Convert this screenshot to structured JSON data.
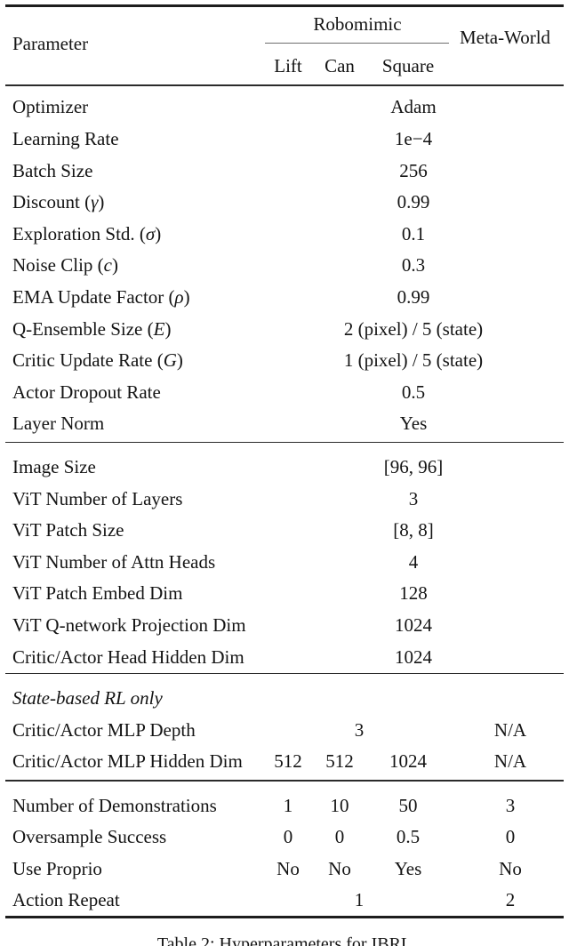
{
  "caption": "Table 2: Hyperparameters for IBRL",
  "header": {
    "parameter": "Parameter",
    "group": "Robomimic",
    "meta": "Meta-World",
    "subcols": [
      "Lift",
      "Can",
      "Square"
    ]
  },
  "sections": [
    {
      "rows": [
        {
          "label": "Optimizer",
          "type": "all",
          "value": "Adam"
        },
        {
          "label": "Learning Rate",
          "type": "all",
          "value": "1e−4"
        },
        {
          "label": "Batch Size",
          "type": "all",
          "value": "256"
        },
        {
          "label": "Discount (γ)",
          "type": "all",
          "value": "0.99"
        },
        {
          "label": "Exploration Std. (σ)",
          "type": "all",
          "value": "0.1"
        },
        {
          "label": "Noise Clip (c)",
          "type": "all",
          "value": "0.3"
        },
        {
          "label": "EMA Update Factor (ρ)",
          "type": "all",
          "value": "0.99"
        },
        {
          "label": "Q-Ensemble Size (E)",
          "type": "all",
          "value": "2 (pixel) / 5 (state)"
        },
        {
          "label": "Critic Update Rate (G)",
          "type": "all",
          "value": "1 (pixel) / 5 (state)"
        },
        {
          "label": "Actor Dropout Rate",
          "type": "all",
          "value": "0.5"
        },
        {
          "label": "Layer Norm",
          "type": "all",
          "value": "Yes"
        }
      ]
    },
    {
      "rows": [
        {
          "label": "Image Size",
          "type": "all",
          "value": "[96, 96]"
        },
        {
          "label": "ViT Number of Layers",
          "type": "all",
          "value": "3"
        },
        {
          "label": "ViT Patch Size",
          "type": "all",
          "value": "[8, 8]"
        },
        {
          "label": "ViT Number of Attn Heads",
          "type": "all",
          "value": "4"
        },
        {
          "label": "ViT Patch Embed Dim",
          "type": "all",
          "value": "128"
        },
        {
          "label": "ViT Q-network Projection Dim",
          "type": "all",
          "value": "1024"
        },
        {
          "label": "Critic/Actor Head Hidden Dim",
          "type": "all",
          "value": "1024"
        }
      ]
    },
    {
      "rows": [
        {
          "label": "State-based RL only",
          "type": "heading"
        },
        {
          "label": "Critic/Actor MLP Depth",
          "type": "group",
          "robomimic": "3",
          "meta": "N/A"
        },
        {
          "label": "Critic/Actor MLP Hidden Dim",
          "type": "cols",
          "values": [
            "512",
            "512",
            "1024",
            "N/A"
          ]
        }
      ]
    },
    {
      "rows": [
        {
          "label": "Number of Demonstrations",
          "type": "cols",
          "values": [
            "1",
            "10",
            "50",
            "3"
          ]
        },
        {
          "label": "Oversample Success",
          "type": "cols",
          "values": [
            "0",
            "0",
            "0.5",
            "0"
          ]
        },
        {
          "label": "Use Proprio",
          "type": "cols",
          "values": [
            "No",
            "No",
            "Yes",
            "No"
          ]
        },
        {
          "label": "Action Repeat",
          "type": "group",
          "robomimic": "1",
          "meta": "2"
        }
      ]
    }
  ]
}
